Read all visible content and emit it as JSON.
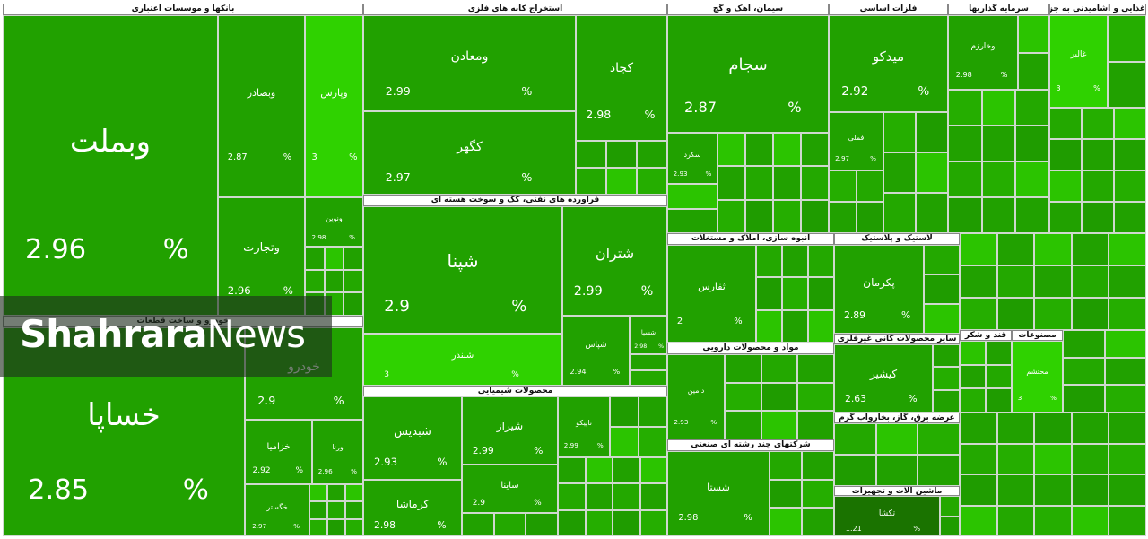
{
  "percent_sign": "%",
  "watermark": {
    "bold": "Shahrara",
    "light": "News"
  },
  "sectors": [
    {
      "title": "بانکها و موسسات اعتباری",
      "tiles": [
        {
          "name": "وبملت",
          "change": 2.96,
          "color": "#21a100"
        },
        {
          "name": "وبصادر",
          "change": 2.87,
          "color": "#21a100"
        },
        {
          "name": "وپارس",
          "change": 3,
          "color": "#2fd200"
        },
        {
          "name": "وتجارت",
          "change": 2.96,
          "color": "#21a100"
        },
        {
          "name": "ونوین",
          "change": 2.98,
          "color": "#21a100"
        }
      ]
    },
    {
      "title": "خودرو و ساخت قطعات",
      "tiles": [
        {
          "name": "خساپا",
          "change": 2.85,
          "color": "#21a100"
        },
        {
          "name": "خودرو",
          "change": 2.9,
          "color": "#21a100"
        },
        {
          "name": "خزامیا",
          "change": 2.92,
          "color": "#21a100"
        },
        {
          "name": "ورنا",
          "change": 2.96,
          "color": "#21a100"
        },
        {
          "name": "خگستر",
          "change": 2.97,
          "color": "#21a100"
        }
      ]
    },
    {
      "title": "استخراج کانه های فلزی",
      "tiles": [
        {
          "name": "ومعادن",
          "change": 2.99,
          "color": "#21a100"
        },
        {
          "name": "کچاد",
          "change": 2.98,
          "color": "#21a100"
        },
        {
          "name": "کگهر",
          "change": 2.97,
          "color": "#21a100"
        }
      ]
    },
    {
      "title": "فراورده های نفتی، کک و سوخت هسته ای",
      "tiles": [
        {
          "name": "شپنا",
          "change": 2.9,
          "color": "#21a100"
        },
        {
          "name": "شتران",
          "change": 2.99,
          "color": "#21a100"
        },
        {
          "name": "شبندر",
          "change": 3,
          "color": "#2fd200"
        },
        {
          "name": "شپاس",
          "change": 2.94,
          "color": "#21a100"
        },
        {
          "name": "شسپا",
          "change": 2.98,
          "color": "#21a100"
        }
      ]
    },
    {
      "title": "محصولات شیمیایی",
      "tiles": [
        {
          "name": "شبدیس",
          "change": 2.93,
          "color": "#21a100"
        },
        {
          "name": "شیراز",
          "change": 2.99,
          "color": "#21a100"
        },
        {
          "name": "کرماشا",
          "change": 2.98,
          "color": "#21a100"
        },
        {
          "name": "ساینا",
          "change": 2.9,
          "color": "#21a100"
        },
        {
          "name": "تاپیکو",
          "change": 2.99,
          "color": "#21a100"
        }
      ]
    },
    {
      "title": "سیمان، آهک و گچ",
      "tiles": [
        {
          "name": "سجام",
          "change": 2.87,
          "color": "#21a100"
        },
        {
          "name": "سکرد",
          "change": 2.93,
          "color": "#21a100"
        }
      ]
    },
    {
      "title": "فلزات اساسی",
      "tiles": [
        {
          "name": "میدکو",
          "change": 2.92,
          "color": "#21a100"
        },
        {
          "name": "فملی",
          "change": 2.97,
          "color": "#21a100"
        }
      ]
    },
    {
      "title": "سرمایه گذاریها",
      "tiles": [
        {
          "name": "وخارزم",
          "change": 2.98,
          "color": "#21a100"
        }
      ]
    },
    {
      "title": "غذایی و آشامیدنی به جز قند و شکر",
      "tiles": [
        {
          "name": "غالبر",
          "change": 3,
          "color": "#2fd200"
        }
      ]
    },
    {
      "title": "انبوه سازی، املاک و مستغلات",
      "tiles": [
        {
          "name": "ثفارس",
          "change": 2,
          "color": "#21a100"
        }
      ]
    },
    {
      "title": "مواد و محصولات دارویی",
      "tiles": [
        {
          "name": "دامین",
          "change": 2.93,
          "color": "#21a100"
        }
      ]
    },
    {
      "title": "شرکتهای چند رشته ای صنعتی",
      "tiles": [
        {
          "name": "شستا",
          "change": 2.98,
          "color": "#21a100"
        }
      ]
    },
    {
      "title": "لاستیک و پلاستیک",
      "tiles": [
        {
          "name": "پکرمان",
          "change": 2.89,
          "color": "#21a100"
        }
      ]
    },
    {
      "title": "سایر محصولات کانی غیرفلزی",
      "tiles": [
        {
          "name": "کیشیر",
          "change": 2.63,
          "color": "#21a100"
        }
      ]
    },
    {
      "title": "عرضه برق، گاز، بخاروآب گرم",
      "tiles": []
    },
    {
      "title": "ماشین آلات و تجهیزات",
      "tiles": [
        {
          "name": "تکشا",
          "change": 1.21,
          "color": "#1a7300"
        }
      ]
    },
    {
      "title": "قند و شکر",
      "tiles": []
    },
    {
      "title": "مصنوعات",
      "tiles": [
        {
          "name": "محتشم",
          "change": 3,
          "color": "#2fd200"
        }
      ]
    }
  ]
}
